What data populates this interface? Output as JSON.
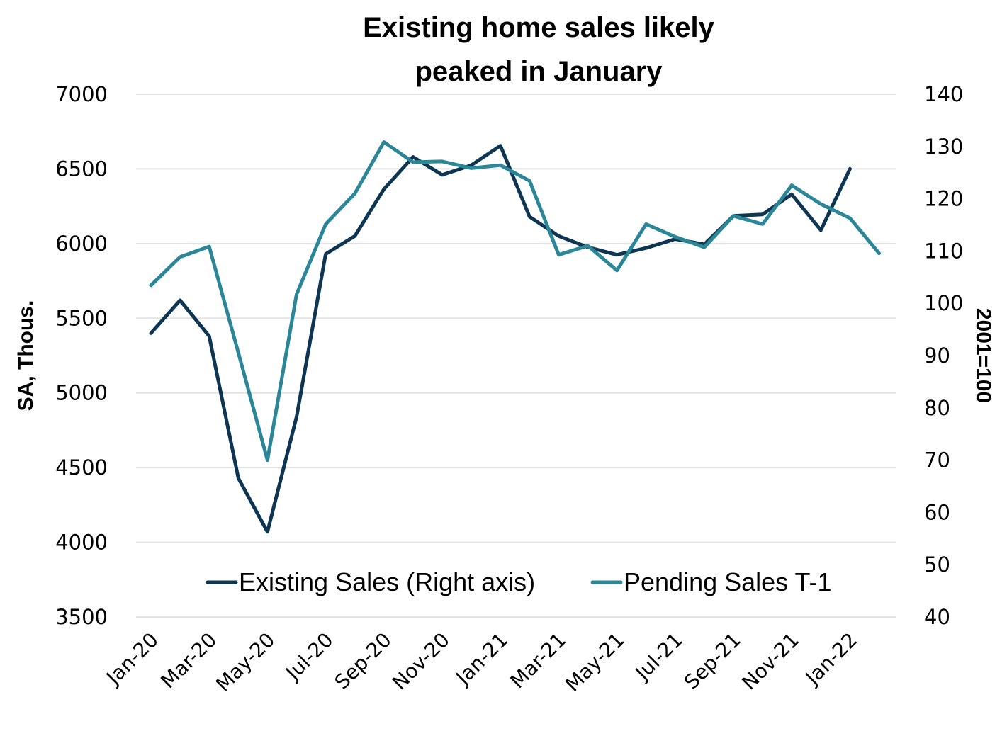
{
  "chart_data": {
    "type": "line",
    "title": "Existing home sales likely peaked in January",
    "title_lines": [
      "Existing home sales likely",
      "peaked in January"
    ],
    "ylabel": "SA, Thous.",
    "y2label": "2001=100",
    "xlabel": "",
    "ylim": [
      3500,
      7000
    ],
    "y2lim": [
      40,
      140
    ],
    "yticks": [
      3500,
      4000,
      4500,
      5000,
      5500,
      6000,
      6500,
      7000
    ],
    "y2ticks": [
      40,
      50,
      60,
      70,
      80,
      90,
      100,
      110,
      120,
      130,
      140
    ],
    "grid": true,
    "legend_position": "bottom-center-inside",
    "x": [
      "Jan-20",
      "Feb-20",
      "Mar-20",
      "Apr-20",
      "May-20",
      "Jun-20",
      "Jul-20",
      "Aug-20",
      "Sep-20",
      "Oct-20",
      "Nov-20",
      "Dec-20",
      "Jan-21",
      "Feb-21",
      "Mar-21",
      "Apr-21",
      "May-21",
      "Jun-21",
      "Jul-21",
      "Aug-21",
      "Sep-21",
      "Oct-21",
      "Nov-21",
      "Dec-21",
      "Jan-22",
      "Feb-22"
    ],
    "xtick_labels": [
      "Jan-20",
      "Mar-20",
      "May-20",
      "Jul-20",
      "Sep-20",
      "Nov-20",
      "Jan-21",
      "Mar-21",
      "May-21",
      "Jul-21",
      "Sep-21",
      "Nov-21",
      "Jan-22"
    ],
    "series": [
      {
        "name": "Existing Sales (Right axis)",
        "color": "#0e3652",
        "values": [
          5400,
          5620,
          5380,
          4430,
          4070,
          4840,
          5930,
          6050,
          6365,
          6580,
          6460,
          6525,
          6655,
          6180,
          6050,
          5975,
          5925,
          5970,
          6030,
          5995,
          6185,
          6195,
          6330,
          6090,
          6500,
          null
        ]
      },
      {
        "name": "Pending Sales T-1",
        "color": "#2b8798",
        "values": [
          5720,
          5910,
          5980,
          5270,
          4550,
          5660,
          6130,
          6335,
          6680,
          6545,
          6550,
          6505,
          6525,
          6420,
          5925,
          5985,
          5820,
          6130,
          6045,
          5975,
          6185,
          6130,
          6390,
          6265,
          6170,
          5935
        ]
      }
    ]
  },
  "colors": {
    "grid": "#e3e3e3",
    "text": "#000000"
  }
}
